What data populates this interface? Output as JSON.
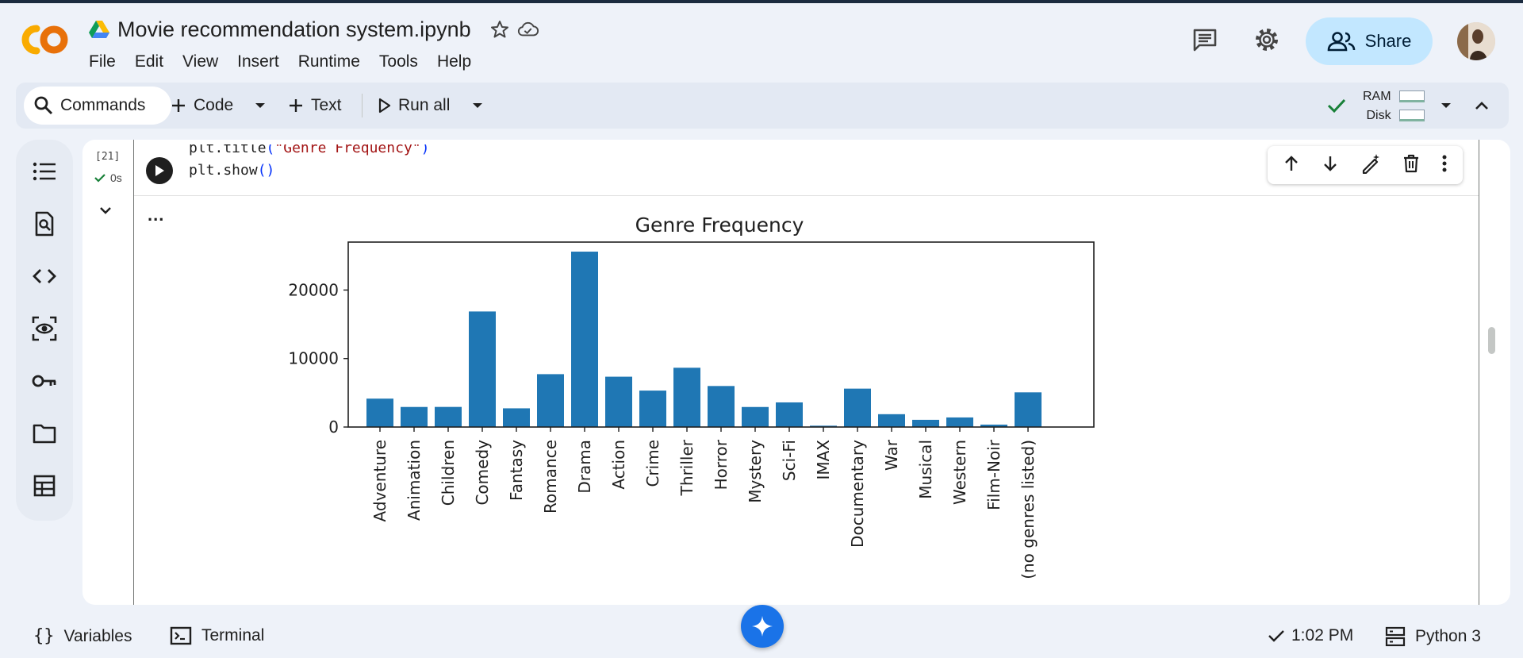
{
  "header": {
    "notebook_title": "Movie recommendation system.ipynb",
    "menu": [
      "File",
      "Edit",
      "View",
      "Insert",
      "Runtime",
      "Tools",
      "Help"
    ],
    "share_label": "Share"
  },
  "toolbar": {
    "commands_label": "Commands",
    "code_label": "Code",
    "text_label": "Text",
    "run_all_label": "Run all",
    "ram_label": "RAM",
    "disk_label": "Disk"
  },
  "cell": {
    "exec_count": "[21]",
    "exec_time": "0s",
    "code_lines": [
      "plt.title(\"Genre Frequency\")",
      "plt.show()"
    ],
    "output_menu": "..."
  },
  "chart_data": {
    "type": "bar",
    "title": "Genre Frequency",
    "xlabel": "",
    "ylabel": "",
    "categories": [
      "Adventure",
      "Animation",
      "Children",
      "Comedy",
      "Fantasy",
      "Romance",
      "Drama",
      "Action",
      "Crime",
      "Thriller",
      "Horror",
      "Mystery",
      "Sci-Fi",
      "IMAX",
      "Documentary",
      "War",
      "Musical",
      "Western",
      "Film-Noir",
      "(no genres listed)"
    ],
    "values": [
      4145,
      2929,
      2935,
      16870,
      2731,
      7719,
      25606,
      7348,
      5319,
      8654,
      5989,
      2925,
      3595,
      195,
      5605,
      1874,
      1054,
      1399,
      353,
      5062
    ],
    "yticks": [
      "0",
      "10000",
      "20000"
    ],
    "ylim": [
      0,
      27000
    ],
    "color": "#1f77b4"
  },
  "statusbar": {
    "variables_label": "Variables",
    "terminal_label": "Terminal",
    "time_label": "1:02 PM",
    "runtime_label": "Python 3"
  }
}
